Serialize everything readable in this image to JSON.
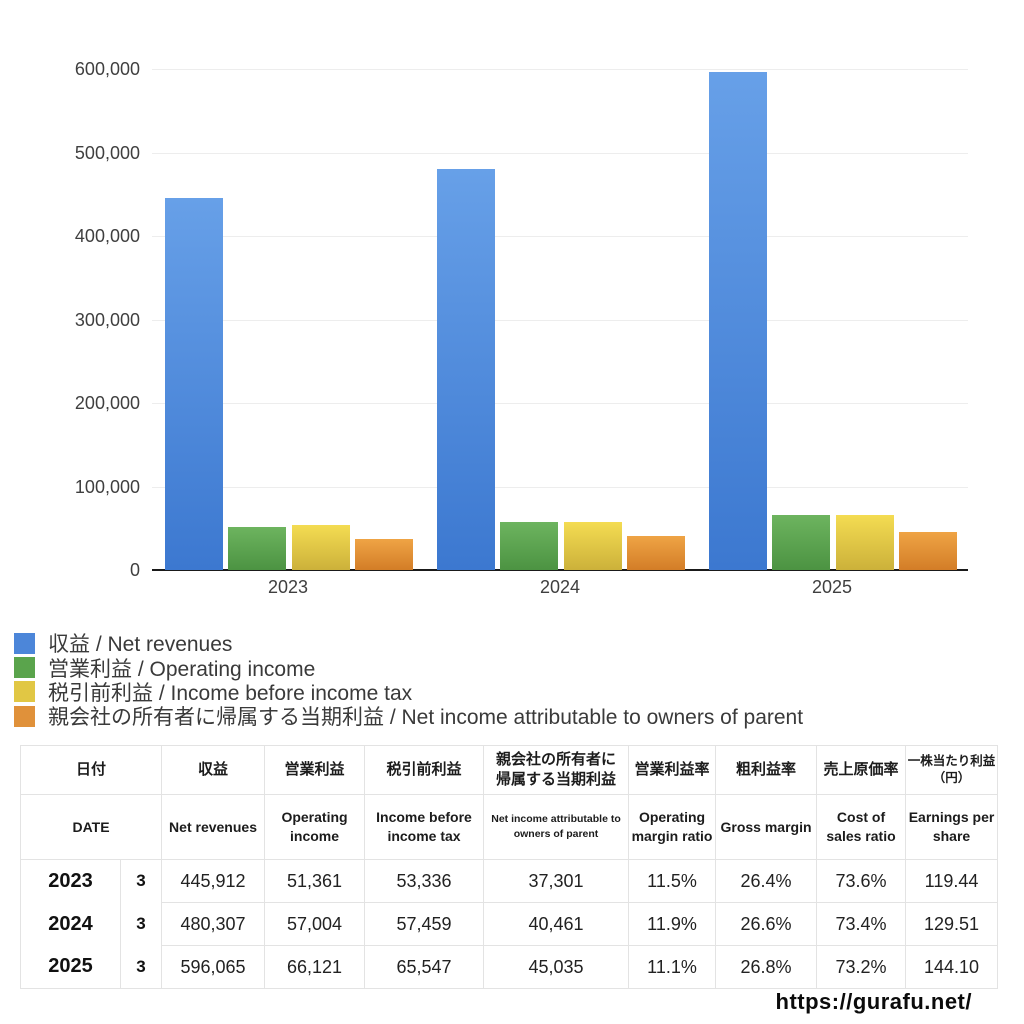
{
  "chart_data": {
    "type": "bar",
    "categories": [
      "2023",
      "2024",
      "2025"
    ],
    "series": [
      {
        "name": "収益 / Net revenues",
        "values": [
          445912,
          480307,
          596065
        ],
        "color_top": "#67A0E8",
        "color_bottom": "#3C78D0",
        "legend_color": "#4C86D9"
      },
      {
        "name": "営業利益 / Operating income",
        "values": [
          51361,
          57004,
          66121
        ],
        "color_top": "#6DB45F",
        "color_bottom": "#4C9342",
        "legend_color": "#5AA44C"
      },
      {
        "name": "税引前利益 / Income before income tax",
        "values": [
          53336,
          57459,
          65547
        ],
        "color_top": "#F4DC52",
        "color_bottom": "#CCB13A",
        "legend_color": "#E1C744"
      },
      {
        "name": "親会社の所有者に帰属する当期利益 / Net income attributable to owners of parent",
        "values": [
          37301,
          40461,
          45035
        ],
        "color_top": "#EFA445",
        "color_bottom": "#D37D27",
        "legend_color": "#E0913A"
      }
    ],
    "title": "",
    "xlabel": "",
    "ylabel": "",
    "ylim": [
      0,
      600000
    ],
    "ytick_step": 100000,
    "ytick_labels": [
      "0",
      "100,000",
      "200,000",
      "300,000",
      "400,000",
      "500,000",
      "600,000"
    ],
    "grid": true,
    "legend_position": "bottom-left"
  },
  "table": {
    "header_ja": [
      "日付",
      "収益",
      "営業利益",
      "税引前利益",
      "親会社の所有者に\n帰属する当期利益",
      "営業利益率",
      "粗利益率",
      "売上原価率",
      "一株当たり利益\n（円）"
    ],
    "header_en": [
      "DATE",
      "Net revenues",
      "Operating income",
      "Income before income tax",
      "Net income attributable to owners of parent",
      "Operating margin ratio",
      "Gross margin",
      "Cost of sales ratio",
      "Earnings per share"
    ],
    "rows": [
      {
        "year": "2023",
        "month": "3",
        "cells": [
          "445,912",
          "51,361",
          "53,336",
          "37,301",
          "11.5%",
          "26.4%",
          "73.6%",
          "119.44"
        ]
      },
      {
        "year": "2024",
        "month": "3",
        "cells": [
          "480,307",
          "57,004",
          "57,459",
          "40,461",
          "11.9%",
          "26.6%",
          "73.4%",
          "129.51"
        ]
      },
      {
        "year": "2025",
        "month": "3",
        "cells": [
          "596,065",
          "66,121",
          "65,547",
          "45,035",
          "11.1%",
          "26.8%",
          "73.2%",
          "144.10"
        ]
      }
    ]
  },
  "footer": {
    "url": "https://gurafu.net/"
  }
}
